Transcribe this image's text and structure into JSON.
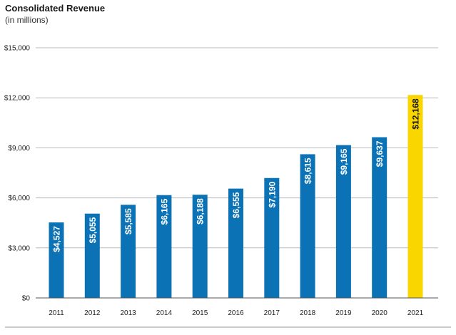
{
  "chart_data": {
    "type": "bar",
    "title": "Consolidated Revenue",
    "subtitle": "(in millions)",
    "categories": [
      "2011",
      "2012",
      "2013",
      "2014",
      "2015",
      "2016",
      "2017",
      "2018",
      "2019",
      "2020",
      "2021"
    ],
    "values": [
      4527,
      5055,
      5585,
      6165,
      6188,
      6555,
      7190,
      8615,
      9165,
      9637,
      12168
    ],
    "value_labels": [
      "$4,527",
      "$5,055",
      "$5,585",
      "$6,165",
      "$6,188",
      "$6,555",
      "$7,190",
      "$8,615",
      "$9,165",
      "$9,637",
      "$12,168"
    ],
    "ylim": [
      0,
      15000
    ],
    "yticks": [
      0,
      3000,
      6000,
      9000,
      12000,
      15000
    ],
    "ytick_labels": [
      "$0",
      "$3,000",
      "$6,000",
      "$9,000",
      "$12,000",
      "$15,000"
    ],
    "grid": true,
    "xlabel": "",
    "ylabel": "",
    "colors": {
      "bar": "#0a72b5",
      "highlight": "#f9d600",
      "grid": "#b9b9b9",
      "axis": "#555555",
      "label_on_bar": "#ffffff",
      "label_on_highlight": "#1a1a1a"
    },
    "highlight_index": 10
  }
}
